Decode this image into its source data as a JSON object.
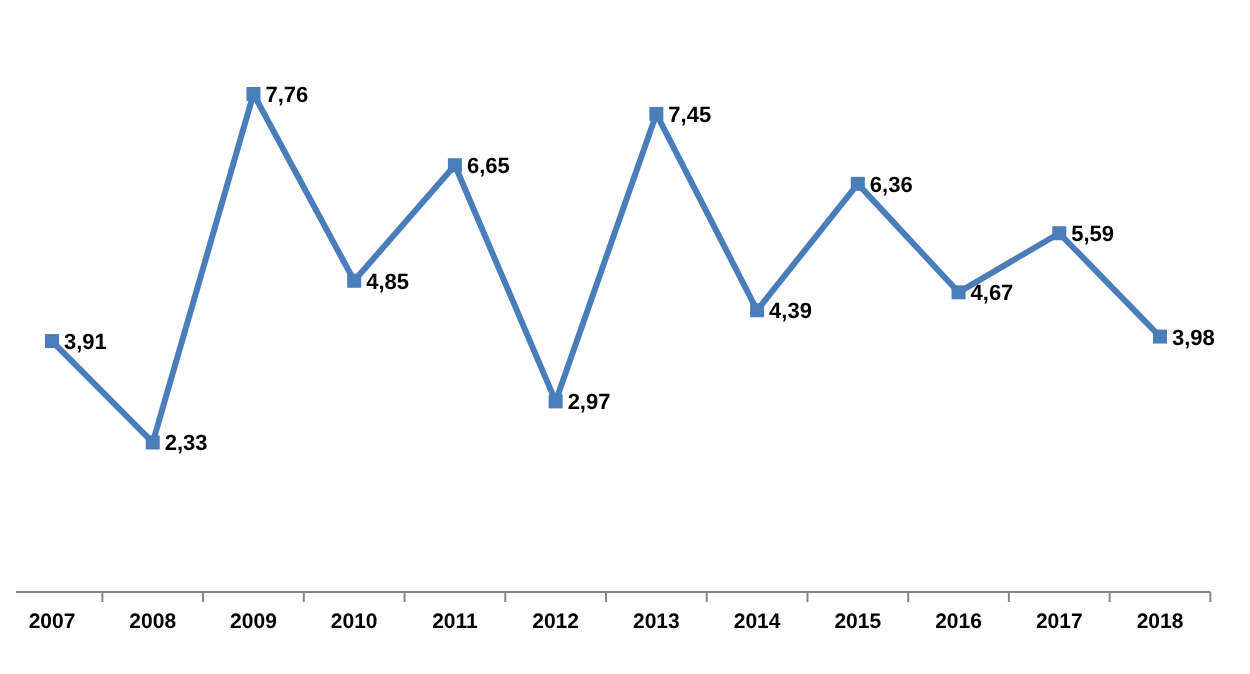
{
  "chart_data": {
    "type": "line",
    "categories": [
      "2007",
      "2008",
      "2009",
      "2010",
      "2011",
      "2012",
      "2013",
      "2014",
      "2015",
      "2016",
      "2017",
      "2018"
    ],
    "series": [
      {
        "color": "#4a7ebb",
        "values": [
          3.91,
          2.33,
          7.76,
          4.85,
          6.65,
          2.97,
          7.45,
          4.39,
          6.36,
          4.67,
          5.59,
          3.98
        ],
        "value_labels": [
          "3,91",
          "2,33",
          "7,76",
          "4,85",
          "6,65",
          "2,97",
          "7,45",
          "4,39",
          "6,36",
          "4,67",
          "5,59",
          "3,98"
        ]
      }
    ],
    "marker": "square",
    "line_style": "solid",
    "tick_labels": "x"
  }
}
